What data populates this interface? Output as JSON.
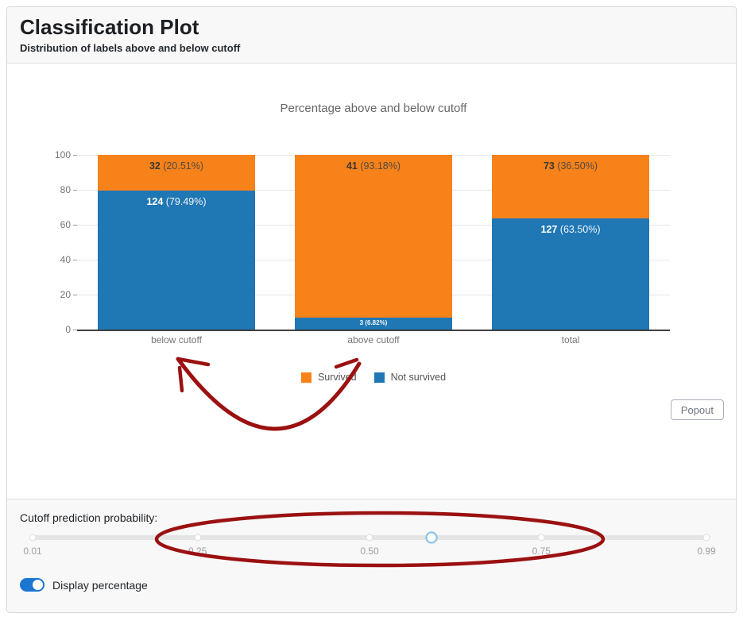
{
  "header": {
    "title": "Classification Plot",
    "subtitle": "Distribution of labels above and below cutoff"
  },
  "chart_data": {
    "type": "bar",
    "stacked": true,
    "title": "Percentage above and below cutoff",
    "categories": [
      "below cutoff",
      "above cutoff",
      "total"
    ],
    "series": [
      {
        "name": "Survived",
        "color": "#f8821a",
        "counts": [
          32,
          41,
          73
        ],
        "percent": [
          20.51,
          93.18,
          36.5
        ]
      },
      {
        "name": "Not survived",
        "color": "#1f77b4",
        "counts": [
          124,
          3,
          127
        ],
        "percent": [
          79.49,
          6.82,
          63.5
        ]
      }
    ],
    "ylim": [
      0,
      100
    ],
    "yticks": [
      0,
      20,
      40,
      60,
      80,
      100
    ],
    "grid": true,
    "legend_position": "bottom-center",
    "bar_label_format": "count (percent%)"
  },
  "popout": {
    "label": "Popout"
  },
  "slider": {
    "label": "Cutoff prediction probability:",
    "min": 0.01,
    "max": 0.99,
    "value": 0.59,
    "ticks": [
      0.01,
      0.25,
      0.5,
      0.75,
      0.99
    ]
  },
  "toggle": {
    "label": "Display percentage",
    "state": "on"
  },
  "colors": {
    "survived": "#f8821a",
    "not_survived": "#1f77b4",
    "toggle_on": "#1b76d2",
    "slider_handle_border": "#7fc3e8",
    "annotation": "#9b1111"
  },
  "annotations": {
    "color": "#9b1111",
    "items": [
      {
        "type": "arrow",
        "points_to": "below cutoff bar"
      },
      {
        "type": "ellipse",
        "around": "cutoff slider ticks"
      }
    ]
  }
}
